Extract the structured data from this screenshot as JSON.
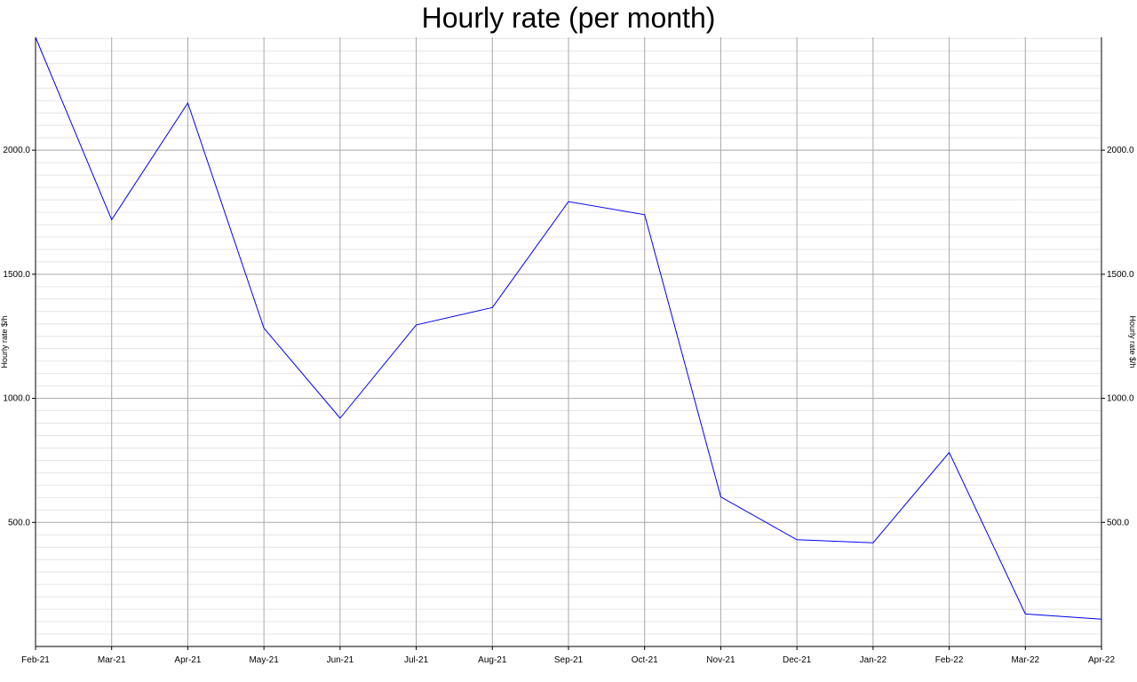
{
  "chart_data": {
    "type": "line",
    "title": "Hourly rate (per month)",
    "xlabel": "",
    "ylabel": "Hourly rate $/h",
    "ylabel_right": "Hourly rate $/h",
    "categories": [
      "Feb-21",
      "Mar-21",
      "Apr-21",
      "May-21",
      "Jun-21",
      "Jul-21",
      "Aug-21",
      "Sep-21",
      "Oct-21",
      "Nov-21",
      "Dec-21",
      "Jan-22",
      "Feb-22",
      "Mar-22",
      "Apr-22"
    ],
    "series": [
      {
        "color": "#0000ff",
        "values": [
          2455,
          1720,
          2190,
          1283,
          920,
          1296,
          1366,
          1793,
          1740,
          603,
          430,
          418,
          782,
          131,
          110
        ]
      }
    ],
    "ylim": [
      0,
      2455
    ],
    "yticks": [
      500.0,
      1000.0,
      1500.0,
      2000.0
    ],
    "ytick_labels": [
      "500.0",
      "1000.0",
      "1500.0",
      "2000.0"
    ],
    "minor_ystep": 50,
    "grid": true,
    "legend": "none"
  }
}
